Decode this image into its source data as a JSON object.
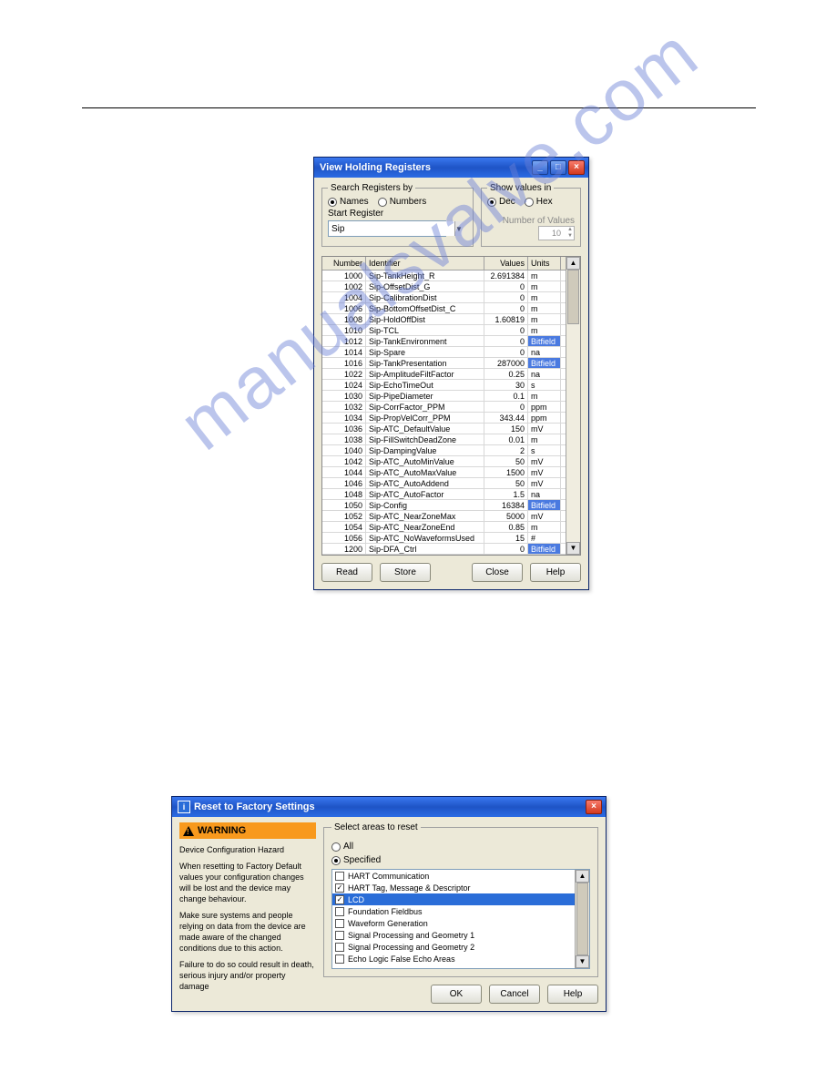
{
  "watermark_text": "manualsvalve.com",
  "window1": {
    "title": "View Holding Registers",
    "search_group": {
      "legend": "Search Registers by",
      "opt_names": "Names",
      "opt_numbers": "Numbers",
      "selected": "names"
    },
    "show_group": {
      "legend": "Show values in",
      "opt_dec": "Dec",
      "opt_hex": "Hex",
      "selected": "dec"
    },
    "start_label": "Start Register",
    "start_value": "Sip",
    "numvalues_label": "Number of Values",
    "numvalues_value": "10",
    "columns": {
      "number": "Number",
      "identifier": "Identifier",
      "values": "Values",
      "units": "Units"
    },
    "rows": [
      {
        "num": "1000",
        "id": "Sip-TankHeight_R",
        "val": "2.691384",
        "unit": "m",
        "bit": false
      },
      {
        "num": "1002",
        "id": "Sip-OffsetDist_G",
        "val": "0",
        "unit": "m",
        "bit": false
      },
      {
        "num": "1004",
        "id": "Sip-CalibrationDist",
        "val": "0",
        "unit": "m",
        "bit": false
      },
      {
        "num": "1006",
        "id": "Sip-BottomOffsetDist_C",
        "val": "0",
        "unit": "m",
        "bit": false
      },
      {
        "num": "1008",
        "id": "Sip-HoldOffDist",
        "val": "1.60819",
        "unit": "m",
        "bit": false
      },
      {
        "num": "1010",
        "id": "Sip-TCL",
        "val": "0",
        "unit": "m",
        "bit": false
      },
      {
        "num": "1012",
        "id": "Sip-TankEnvironment",
        "val": "0",
        "unit": "Bitfield",
        "bit": true
      },
      {
        "num": "1014",
        "id": "Sip-Spare",
        "val": "0",
        "unit": "na",
        "bit": false
      },
      {
        "num": "1016",
        "id": "Sip-TankPresentation",
        "val": "287000",
        "unit": "Bitfield",
        "bit": true
      },
      {
        "num": "1022",
        "id": "Sip-AmplitudeFiltFactor",
        "val": "0.25",
        "unit": "na",
        "bit": false
      },
      {
        "num": "1024",
        "id": "Sip-EchoTimeOut",
        "val": "30",
        "unit": "s",
        "bit": false
      },
      {
        "num": "1030",
        "id": "Sip-PipeDiameter",
        "val": "0.1",
        "unit": "m",
        "bit": false
      },
      {
        "num": "1032",
        "id": "Sip-CorrFactor_PPM",
        "val": "0",
        "unit": "ppm",
        "bit": false
      },
      {
        "num": "1034",
        "id": "Sip-PropVelCorr_PPM",
        "val": "343.44",
        "unit": "ppm",
        "bit": false
      },
      {
        "num": "1036",
        "id": "Sip-ATC_DefaultValue",
        "val": "150",
        "unit": "mV",
        "bit": false
      },
      {
        "num": "1038",
        "id": "Sip-FillSwitchDeadZone",
        "val": "0.01",
        "unit": "m",
        "bit": false
      },
      {
        "num": "1040",
        "id": "Sip-DampingValue",
        "val": "2",
        "unit": "s",
        "bit": false
      },
      {
        "num": "1042",
        "id": "Sip-ATC_AutoMinValue",
        "val": "50",
        "unit": "mV",
        "bit": false
      },
      {
        "num": "1044",
        "id": "Sip-ATC_AutoMaxValue",
        "val": "1500",
        "unit": "mV",
        "bit": false
      },
      {
        "num": "1046",
        "id": "Sip-ATC_AutoAddend",
        "val": "50",
        "unit": "mV",
        "bit": false
      },
      {
        "num": "1048",
        "id": "Sip-ATC_AutoFactor",
        "val": "1.5",
        "unit": "na",
        "bit": false
      },
      {
        "num": "1050",
        "id": "Sip-Config",
        "val": "16384",
        "unit": "Bitfield",
        "bit": true
      },
      {
        "num": "1052",
        "id": "Sip-ATC_NearZoneMax",
        "val": "5000",
        "unit": "mV",
        "bit": false
      },
      {
        "num": "1054",
        "id": "Sip-ATC_NearZoneEnd",
        "val": "0.85",
        "unit": "m",
        "bit": false
      },
      {
        "num": "1056",
        "id": "Sip-ATC_NoWaveformsUsed",
        "val": "15",
        "unit": "#",
        "bit": false
      },
      {
        "num": "1200",
        "id": "Sip-DFA_Ctrl",
        "val": "0",
        "unit": "Bitfield",
        "bit": true
      }
    ],
    "buttons": {
      "read": "Read",
      "store": "Store",
      "close": "Close",
      "help": "Help"
    }
  },
  "window2": {
    "title": "Reset to Factory Settings",
    "warning": {
      "heading": "WARNING",
      "sub": "Device Configuration Hazard",
      "p1": "When resetting to Factory Default values your configuration changes will be lost and the device may change behaviour.",
      "p2": "Make sure systems and people relying on data from the device are made aware of the changed conditions due to this action.",
      "p3": "Failure to do so could result in death, serious injury and/or property damage"
    },
    "select_legend": "Select areas to reset",
    "opt_all": "All",
    "opt_specified": "Specified",
    "items": [
      {
        "label": "HART Communication",
        "checked": false,
        "sel": false
      },
      {
        "label": "HART Tag, Message & Descriptor",
        "checked": true,
        "sel": false
      },
      {
        "label": "LCD",
        "checked": true,
        "sel": true
      },
      {
        "label": "Foundation Fieldbus",
        "checked": false,
        "sel": false
      },
      {
        "label": "Waveform Generation",
        "checked": false,
        "sel": false
      },
      {
        "label": "Signal Processing and Geometry 1",
        "checked": false,
        "sel": false
      },
      {
        "label": "Signal Processing and Geometry 2",
        "checked": false,
        "sel": false
      },
      {
        "label": "Echo Logic False Echo Areas",
        "checked": false,
        "sel": false
      }
    ],
    "buttons": {
      "ok": "OK",
      "cancel": "Cancel",
      "help": "Help"
    }
  },
  "colors": {
    "titlebar_start": "#3a78f0",
    "titlebar_end": "#1e54c6",
    "close_red": "#d23a1f",
    "panel_bg": "#ece9d8",
    "bitfield_bg": "#4a7ae0",
    "warning_bg": "#f8991d",
    "selection_bg": "#2a6dd8",
    "watermark_color": "#6a7fd6"
  }
}
